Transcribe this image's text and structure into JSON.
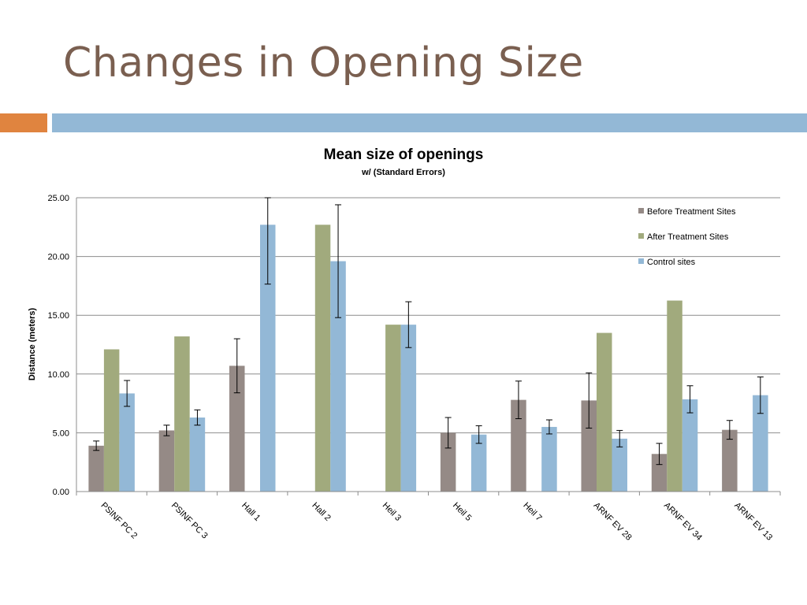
{
  "slide": {
    "title": "Changes in Opening Size",
    "accent_colors": {
      "orange": "#e0843f",
      "blue": "#93b8d6"
    }
  },
  "chart_data": {
    "type": "bar",
    "title": "Mean size of openings",
    "subtitle": "w/ (Standard Errors)",
    "xlabel": "",
    "ylabel": "Distance (meters)",
    "ylim": [
      0,
      25
    ],
    "yticks": [
      "0.00",
      "5.00",
      "10.00",
      "15.00",
      "20.00",
      "25.00"
    ],
    "grid": true,
    "legend_position": "top-right",
    "categories": [
      "PSINF PC 2",
      "PSINF PC 3",
      "Hall 1",
      "Hall 2",
      "Heil 3",
      "Heil 5",
      "Heil 7",
      "ARNF EV 28",
      "ARNF EV 34",
      "ARNF EV 13"
    ],
    "series": [
      {
        "name": "Before Treatment Sites",
        "color": "#958a86",
        "values": [
          3.9,
          5.2,
          10.7,
          null,
          null,
          5.0,
          7.8,
          7.75,
          3.2,
          5.25
        ],
        "errors": [
          0.4,
          0.45,
          2.3,
          null,
          null,
          1.3,
          1.6,
          2.35,
          0.9,
          0.8
        ]
      },
      {
        "name": "After Treatment Sites",
        "color": "#a1aa7d",
        "values": [
          12.1,
          13.2,
          null,
          22.7,
          14.2,
          null,
          null,
          13.5,
          16.25,
          null
        ],
        "errors": [
          null,
          null,
          null,
          null,
          null,
          null,
          null,
          null,
          null,
          null
        ]
      },
      {
        "name": "Control sites",
        "color": "#93b8d6",
        "values": [
          8.35,
          6.3,
          22.7,
          19.6,
          14.2,
          4.85,
          5.5,
          4.5,
          7.85,
          8.2
        ],
        "errors": [
          1.1,
          0.65,
          5.05,
          4.8,
          1.95,
          0.75,
          0.6,
          0.7,
          1.15,
          1.55
        ]
      }
    ]
  }
}
